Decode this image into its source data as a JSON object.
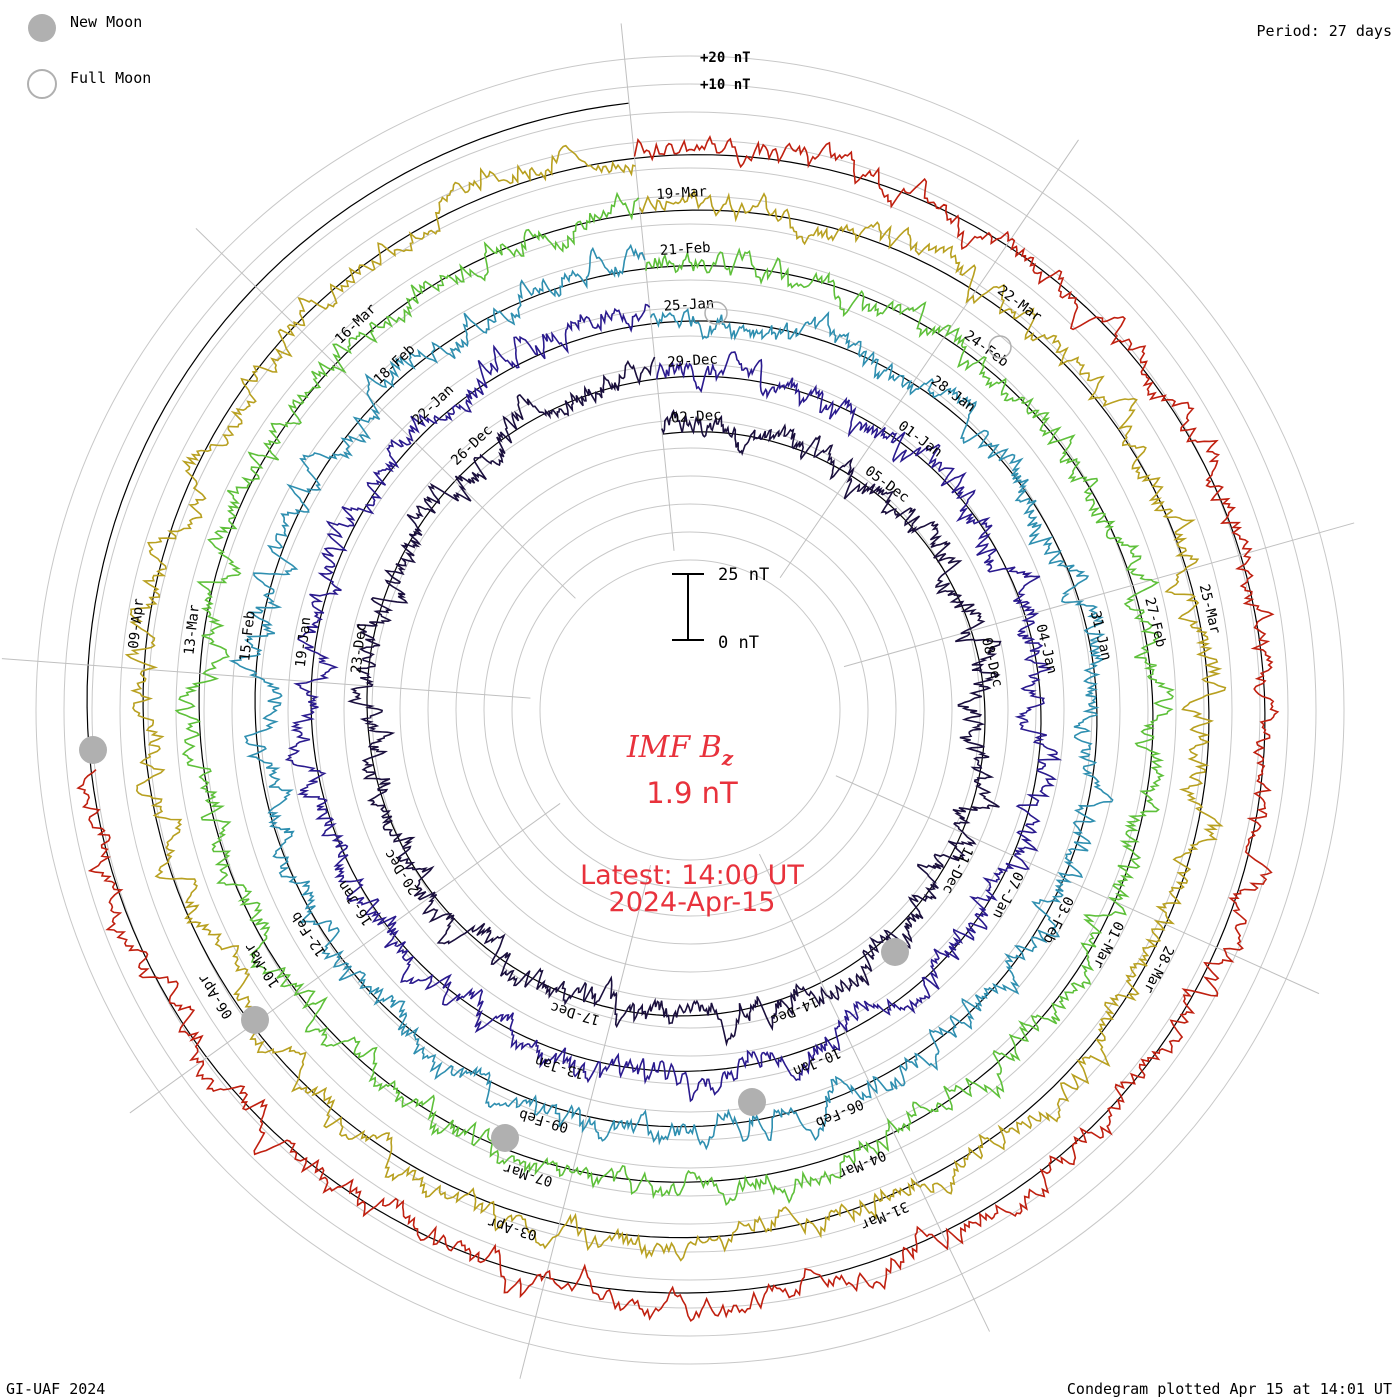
{
  "header": {
    "period_label": "Period: 27 days"
  },
  "legend": {
    "new_moon_label": "New Moon",
    "full_moon_label": "Full Moon"
  },
  "footer": {
    "credit": "GI-UAF 2024",
    "plotted": "Condegram plotted Apr 15 at 14:01 UT"
  },
  "center": {
    "title": "IMF B",
    "title_sub": "z",
    "value": "1.9 nT",
    "latest": "Latest: 14:00 UT",
    "date": "2024-Apr-15",
    "scale_top": "25 nT",
    "scale_bottom": "0 nT",
    "title_color": "#e8323c"
  },
  "chart_data": {
    "type": "line",
    "period_days": 27,
    "scale_markers": [
      "+20 nT",
      "+10 nT"
    ],
    "series": [
      {
        "color": "#1a0f3d",
        "tick_labels": [
          "02-Dec",
          "05-Dec",
          "08-Dec",
          "11-Dec",
          "14-Dec",
          "17-Dec",
          "20-Dec",
          "23-Dec",
          "26-Dec"
        ]
      },
      {
        "color": "#2a1a8e",
        "tick_labels": [
          "29-Dec",
          "01-Jan",
          "04-Jan",
          "07-Jan",
          "10-Jan",
          "13-Jan",
          "16-Jan",
          "19-Jan",
          "22-Jan"
        ]
      },
      {
        "color": "#2f8fb0",
        "tick_labels": [
          "25-Jan",
          "28-Jan",
          "31-Jan",
          "03-Feb",
          "06-Feb",
          "09-Feb",
          "12-Feb",
          "15-Feb",
          "18-Feb"
        ]
      },
      {
        "color": "#5ec03a",
        "tick_labels": [
          "21-Feb",
          "24-Feb",
          "27-Feb",
          "01-Mar",
          "04-Mar",
          "07-Mar",
          "10-Mar",
          "13-Mar",
          "16-Mar"
        ]
      },
      {
        "color": "#b8a020",
        "tick_labels": [
          "19-Mar",
          "22-Mar",
          "25-Mar",
          "28-Mar",
          "31-Mar",
          "03-Apr",
          "06-Apr",
          "09-Apr"
        ]
      },
      {
        "color": "#c02010",
        "tick_labels": []
      }
    ],
    "new_moon_markers": [
      "11-Dec",
      "10-Jan",
      "09-Feb",
      "10-Mar",
      "08-Apr"
    ],
    "full_moon_markers": [
      "26-Jan",
      "24-Feb"
    ]
  }
}
